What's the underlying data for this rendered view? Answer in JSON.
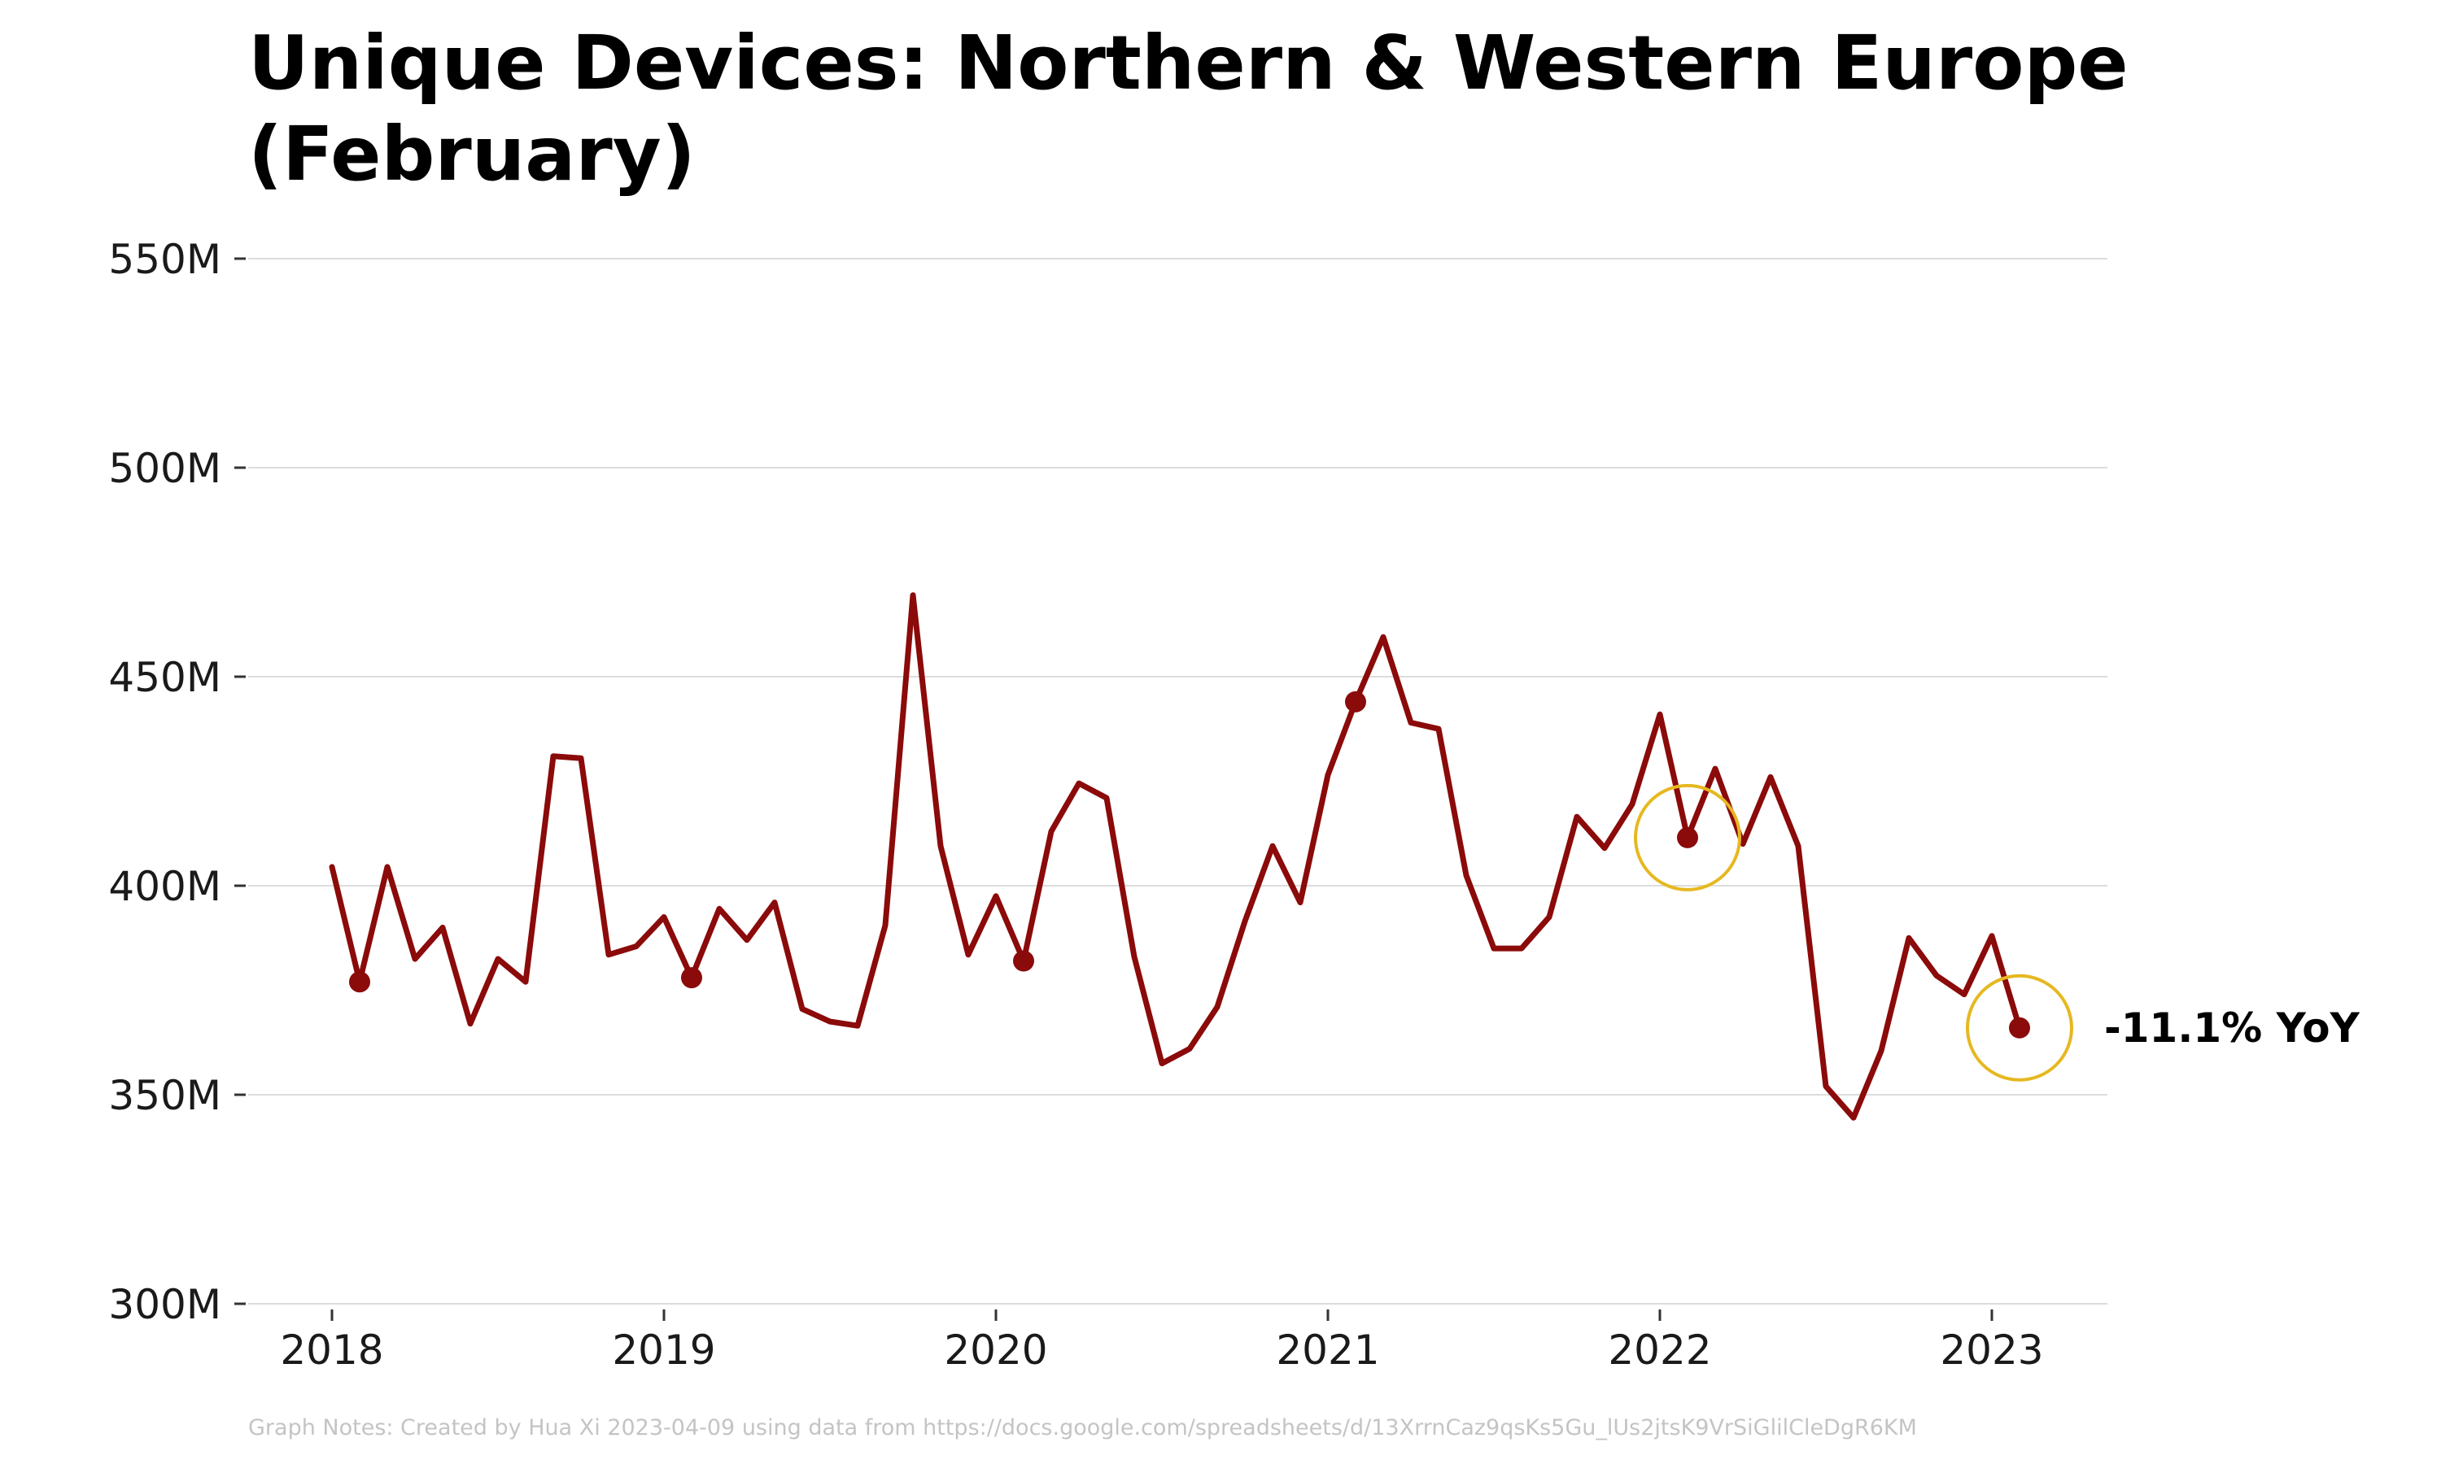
{
  "chart_data": {
    "type": "line",
    "title": "Unique Devices: Northern & Western Europe (February)",
    "xlabel": "",
    "ylabel": "",
    "ylim": [
      300,
      550
    ],
    "xlim": [
      "2017-11",
      "2023-06"
    ],
    "y_unit": "M",
    "grid": "horizontal",
    "x_ticks": [
      {
        "date": "2018-01",
        "label": "2018"
      },
      {
        "date": "2019-01",
        "label": "2019"
      },
      {
        "date": "2020-01",
        "label": "2020"
      },
      {
        "date": "2021-01",
        "label": "2021"
      },
      {
        "date": "2022-01",
        "label": "2022"
      },
      {
        "date": "2023-01",
        "label": "2023"
      }
    ],
    "y_ticks": [
      {
        "value": 300,
        "label": "300M"
      },
      {
        "value": 350,
        "label": "350M"
      },
      {
        "value": 400,
        "label": "400M"
      },
      {
        "value": 450,
        "label": "450M"
      },
      {
        "value": 500,
        "label": "500M"
      },
      {
        "value": 550,
        "label": "550M"
      }
    ],
    "series": [
      {
        "color": "#8b0a0a",
        "x": [
          "2018-01",
          "2018-02",
          "2018-03",
          "2018-04",
          "2018-05",
          "2018-06",
          "2018-07",
          "2018-08",
          "2018-09",
          "2018-10",
          "2018-11",
          "2018-12",
          "2019-01",
          "2019-02",
          "2019-03",
          "2019-04",
          "2019-05",
          "2019-06",
          "2019-07",
          "2019-08",
          "2019-09",
          "2019-10",
          "2019-11",
          "2019-12",
          "2020-01",
          "2020-02",
          "2020-03",
          "2020-04",
          "2020-05",
          "2020-06",
          "2020-07",
          "2020-08",
          "2020-09",
          "2020-10",
          "2020-11",
          "2020-12",
          "2021-01",
          "2021-02",
          "2021-03",
          "2021-04",
          "2021-05",
          "2021-06",
          "2021-07",
          "2021-08",
          "2021-09",
          "2021-10",
          "2021-11",
          "2021-12",
          "2022-01",
          "2022-02",
          "2022-03",
          "2022-04",
          "2022-05",
          "2022-06",
          "2022-07",
          "2022-08",
          "2022-09",
          "2022-10",
          "2022-11",
          "2022-12",
          "2023-01",
          "2023-02"
        ],
        "values": [
          404.5,
          377,
          404.5,
          382.5,
          390,
          367,
          382.5,
          377,
          431,
          430.5,
          383.5,
          385.5,
          392.5,
          378,
          394.5,
          387,
          396,
          370.5,
          367.5,
          366.5,
          390.5,
          469.5,
          409.5,
          383.5,
          397.5,
          382,
          413,
          424.5,
          421,
          383,
          357.5,
          361,
          371,
          391.5,
          409.5,
          396,
          426.5,
          444,
          459.5,
          439,
          437.5,
          402.5,
          385,
          385,
          392.5,
          416.5,
          409,
          419.5,
          441,
          411.5,
          428,
          410,
          426,
          409.5,
          352,
          344.5,
          360.5,
          387.5,
          378.5,
          374,
          388,
          366
        ]
      }
    ],
    "highlight_points": [
      {
        "date": "2018-02",
        "value": 377
      },
      {
        "date": "2019-02",
        "value": 378
      },
      {
        "date": "2020-02",
        "value": 382
      },
      {
        "date": "2021-02",
        "value": 444
      },
      {
        "date": "2022-02",
        "value": 411.5
      },
      {
        "date": "2023-02",
        "value": 366
      }
    ],
    "circled_points": [
      {
        "date": "2022-02",
        "value": 411.5
      },
      {
        "date": "2023-02",
        "value": 366
      }
    ],
    "annotation": {
      "text": "-11.1% YoY",
      "date": "2023-02",
      "value": 366
    },
    "colors": {
      "line": "#8b0a0a",
      "circle": "#e6b820",
      "grid": "#dcdcdc"
    }
  },
  "caption": "Graph Notes: Created by Hua Xi 2023-04-09 using data from https://docs.google.com/spreadsheets/d/13XrrnCaz9qsKs5Gu_lUs2jtsK9VrSiGlilCleDgR6KM"
}
